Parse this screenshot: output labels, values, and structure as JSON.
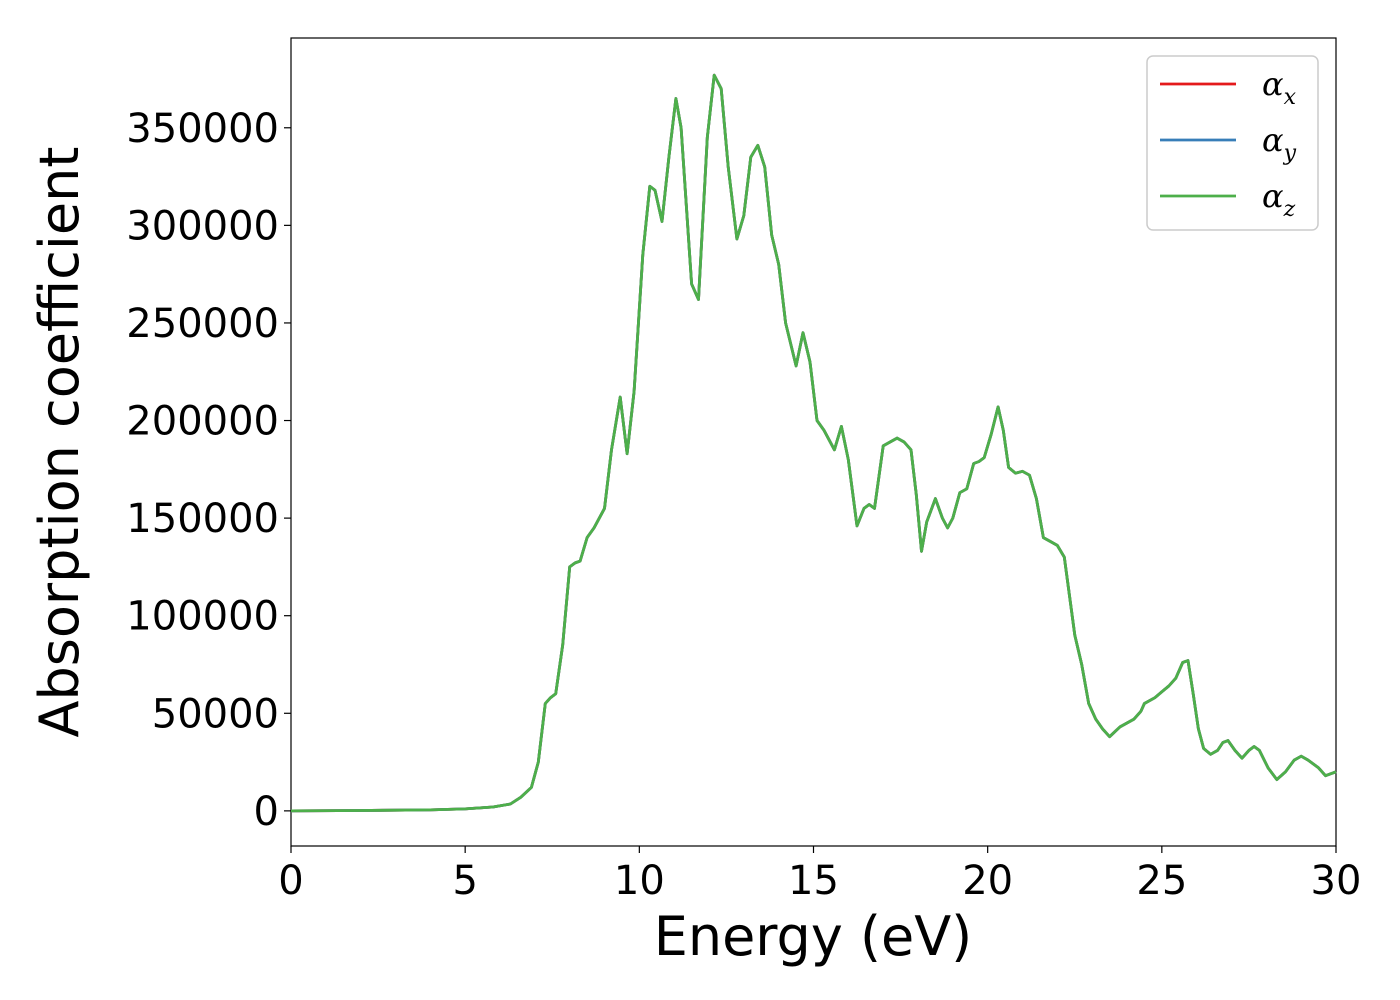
{
  "chart_data": {
    "type": "line",
    "title": "",
    "xlabel": "Energy (eV)",
    "ylabel": "Absorption coefficient",
    "xlim": [
      0,
      30
    ],
    "ylim": [
      -18000,
      396000
    ],
    "xticks": [
      0,
      5,
      10,
      15,
      20,
      25,
      30
    ],
    "yticks": [
      0,
      50000,
      100000,
      150000,
      200000,
      250000,
      300000,
      350000
    ],
    "grid": false,
    "legend": "top-right",
    "series": [
      {
        "name": "α",
        "sub": "x",
        "color": "#e41a1c"
      },
      {
        "name": "α",
        "sub": "y",
        "color": "#377eb8"
      },
      {
        "name": "α",
        "sub": "z",
        "color": "#4daf4a"
      }
    ],
    "x": [
      0,
      2,
      4,
      5,
      5.8,
      6.3,
      6.6,
      6.9,
      7.1,
      7.3,
      7.45,
      7.6,
      7.8,
      8.0,
      8.15,
      8.3,
      8.5,
      8.7,
      9.0,
      9.2,
      9.45,
      9.65,
      9.85,
      10.1,
      10.3,
      10.45,
      10.65,
      10.85,
      11.05,
      11.2,
      11.5,
      11.7,
      11.95,
      12.15,
      12.35,
      12.55,
      12.8,
      13.0,
      13.2,
      13.4,
      13.6,
      13.8,
      14.0,
      14.2,
      14.5,
      14.7,
      14.9,
      15.1,
      15.3,
      15.6,
      15.8,
      16.0,
      16.25,
      16.45,
      16.6,
      16.75,
      17.0,
      17.2,
      17.4,
      17.6,
      17.8,
      17.95,
      18.1,
      18.25,
      18.5,
      18.7,
      18.85,
      19.0,
      19.2,
      19.4,
      19.6,
      19.75,
      19.9,
      20.1,
      20.3,
      20.45,
      20.6,
      20.8,
      21.0,
      21.2,
      21.4,
      21.6,
      21.8,
      22.0,
      22.2,
      22.5,
      22.7,
      22.9,
      23.1,
      23.3,
      23.5,
      23.8,
      24.0,
      24.2,
      24.4,
      24.5,
      24.8,
      25.0,
      25.2,
      25.4,
      25.6,
      25.75,
      25.9,
      26.05,
      26.2,
      26.4,
      26.6,
      26.75,
      26.9,
      27.1,
      27.3,
      27.5,
      27.65,
      27.8,
      28.05,
      28.3,
      28.55,
      28.8,
      29.0,
      29.2,
      29.5,
      29.7,
      30.0
    ],
    "y": [
      0,
      200,
      500,
      1000,
      2000,
      3500,
      7000,
      12000,
      25000,
      55000,
      58000,
      60000,
      85000,
      125000,
      127000,
      128000,
      140000,
      145000,
      155000,
      185000,
      212000,
      183000,
      215000,
      285000,
      320000,
      318000,
      302000,
      335000,
      365000,
      350000,
      270000,
      262000,
      345000,
      377000,
      370000,
      330000,
      293000,
      305000,
      335000,
      341000,
      330000,
      295000,
      280000,
      250000,
      228000,
      245000,
      230000,
      200000,
      195000,
      185000,
      197000,
      180000,
      146000,
      155000,
      157000,
      155000,
      187000,
      189000,
      191000,
      189000,
      185000,
      162000,
      133000,
      148000,
      160000,
      150000,
      145000,
      150000,
      163000,
      165000,
      178000,
      179000,
      181000,
      193000,
      207000,
      195000,
      176000,
      173000,
      174000,
      172000,
      160000,
      140000,
      138000,
      136000,
      130000,
      90000,
      75000,
      55000,
      47000,
      42000,
      38000,
      43000,
      45000,
      47000,
      51000,
      55000,
      58000,
      61000,
      64000,
      68000,
      76000,
      77000,
      60000,
      42000,
      32000,
      29000,
      31000,
      35000,
      36000,
      31000,
      27000,
      31000,
      33000,
      31000,
      22000,
      16000,
      20000,
      26000,
      28000,
      26000,
      22000,
      18000,
      20000
    ]
  }
}
